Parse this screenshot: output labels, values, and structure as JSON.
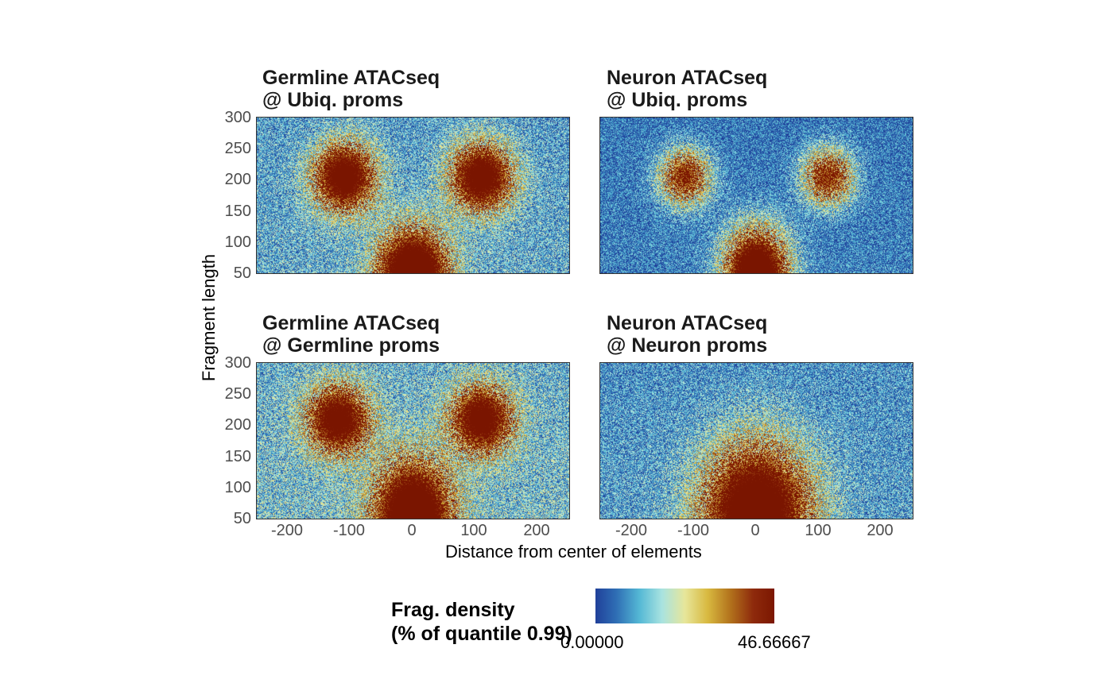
{
  "chart_data": {
    "type": "heatmap",
    "xlabel": "Distance from center of elements",
    "ylabel": "Fragment length",
    "xlim": [
      -250,
      250
    ],
    "ylim": [
      50,
      300
    ],
    "x_ticks": [
      "-200",
      "-100",
      "0",
      "100",
      "200"
    ],
    "y_ticks": [
      "300",
      "250",
      "200",
      "150",
      "100",
      "50"
    ],
    "panels": [
      {
        "title_line1": "Germline ATACseq",
        "title_line2": "@ Ubiq. proms",
        "center_peak": {
          "x": 0,
          "y": 50,
          "x_halfwidth": 55,
          "y_halfheight": 70,
          "intensity": 1.0
        },
        "side_peaks": [
          {
            "x": -110,
            "y": 205,
            "x_halfwidth": 50,
            "y_halfheight": 55,
            "intensity": 0.9
          },
          {
            "x": 110,
            "y": 205,
            "x_halfwidth": 50,
            "y_halfheight": 55,
            "intensity": 0.9
          }
        ],
        "background": 0.25
      },
      {
        "title_line1": "Neuron ATACseq",
        "title_line2": "@ Ubiq. proms",
        "center_peak": {
          "x": 0,
          "y": 50,
          "x_halfwidth": 50,
          "y_halfheight": 70,
          "intensity": 1.0
        },
        "side_peaks": [
          {
            "x": -115,
            "y": 205,
            "x_halfwidth": 40,
            "y_halfheight": 45,
            "intensity": 0.65
          },
          {
            "x": 115,
            "y": 205,
            "x_halfwidth": 40,
            "y_halfheight": 45,
            "intensity": 0.65
          }
        ],
        "background": 0.15
      },
      {
        "title_line1": "Germline ATACseq",
        "title_line2": "@ Germline proms",
        "center_peak": {
          "x": 0,
          "y": 50,
          "x_halfwidth": 60,
          "y_halfheight": 90,
          "intensity": 1.0
        },
        "side_peaks": [
          {
            "x": -120,
            "y": 210,
            "x_halfwidth": 50,
            "y_halfheight": 55,
            "intensity": 0.85
          },
          {
            "x": 110,
            "y": 210,
            "x_halfwidth": 50,
            "y_halfheight": 55,
            "intensity": 0.85
          }
        ],
        "background": 0.3
      },
      {
        "title_line1": "Neuron ATACseq",
        "title_line2": "@ Neuron proms",
        "center_peak": {
          "x": 0,
          "y": 60,
          "x_halfwidth": 85,
          "y_halfheight": 110,
          "intensity": 0.95
        },
        "side_peaks": [],
        "background": 0.22
      }
    ],
    "legend": {
      "title_line1": "Frag. density",
      "title_line2": "(% of quantile 0.99)",
      "min_label": "0.00000",
      "max_label": "46.66667",
      "min": 0,
      "max": 46.66667,
      "colors": [
        "#1f3d98",
        "#2f6fb5",
        "#54b8d5",
        "#a9e3e0",
        "#e7e69a",
        "#d8b940",
        "#b2721c",
        "#8e2a0c",
        "#7a1500"
      ]
    }
  }
}
